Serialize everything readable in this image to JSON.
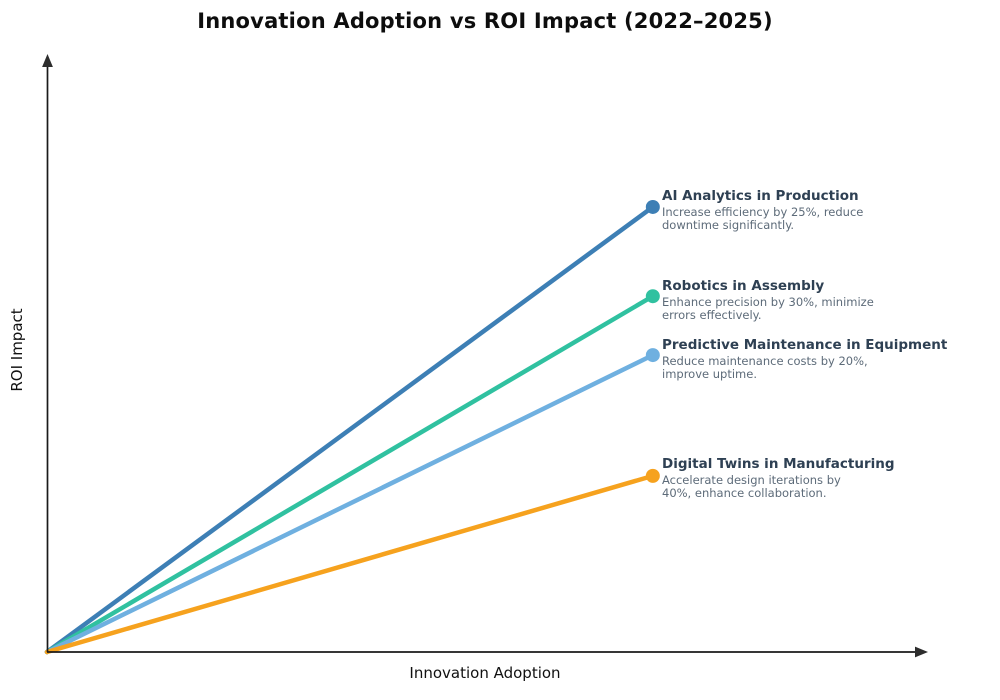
{
  "chart_data": {
    "type": "line",
    "title": "Innovation Adoption vs ROI Impact (2022–2025)",
    "xlabel": "Innovation Adoption",
    "ylabel": "ROI Impact",
    "xlim": [
      0,
      100
    ],
    "ylim": [
      0,
      100
    ],
    "grid": false,
    "legend_position": "none (inline end-of-line annotations)",
    "axis_color": "#1a1a1a",
    "annotation_title_color": "#2e4053",
    "annotation_desc_color": "#5d6b79",
    "series": [
      {
        "name": "AI Analytics in Production",
        "description": "Increase efficiency by 25%, reduce\ndowntime significantly.",
        "color": "#3d7fb5",
        "x": [
          0,
          69
        ],
        "y": [
          0,
          74.8
        ]
      },
      {
        "name": "Robotics in Assembly",
        "description": "Enhance precision by 30%, minimize\nerrors effectively.",
        "color": "#30c1a0",
        "x": [
          0,
          69
        ],
        "y": [
          0,
          59.8
        ]
      },
      {
        "name": "Predictive Maintenance in Equipment",
        "description": "Reduce maintenance costs by 20%,\nimprove uptime.",
        "color": "#6fb0e0",
        "x": [
          0,
          69
        ],
        "y": [
          0,
          49.9
        ]
      },
      {
        "name": "Digital Twins in Manufacturing",
        "description": "Accelerate design iterations by\n40%, enhance collaboration.",
        "color": "#f6a21e",
        "x": [
          0,
          69
        ],
        "y": [
          0,
          29.6
        ]
      }
    ]
  }
}
